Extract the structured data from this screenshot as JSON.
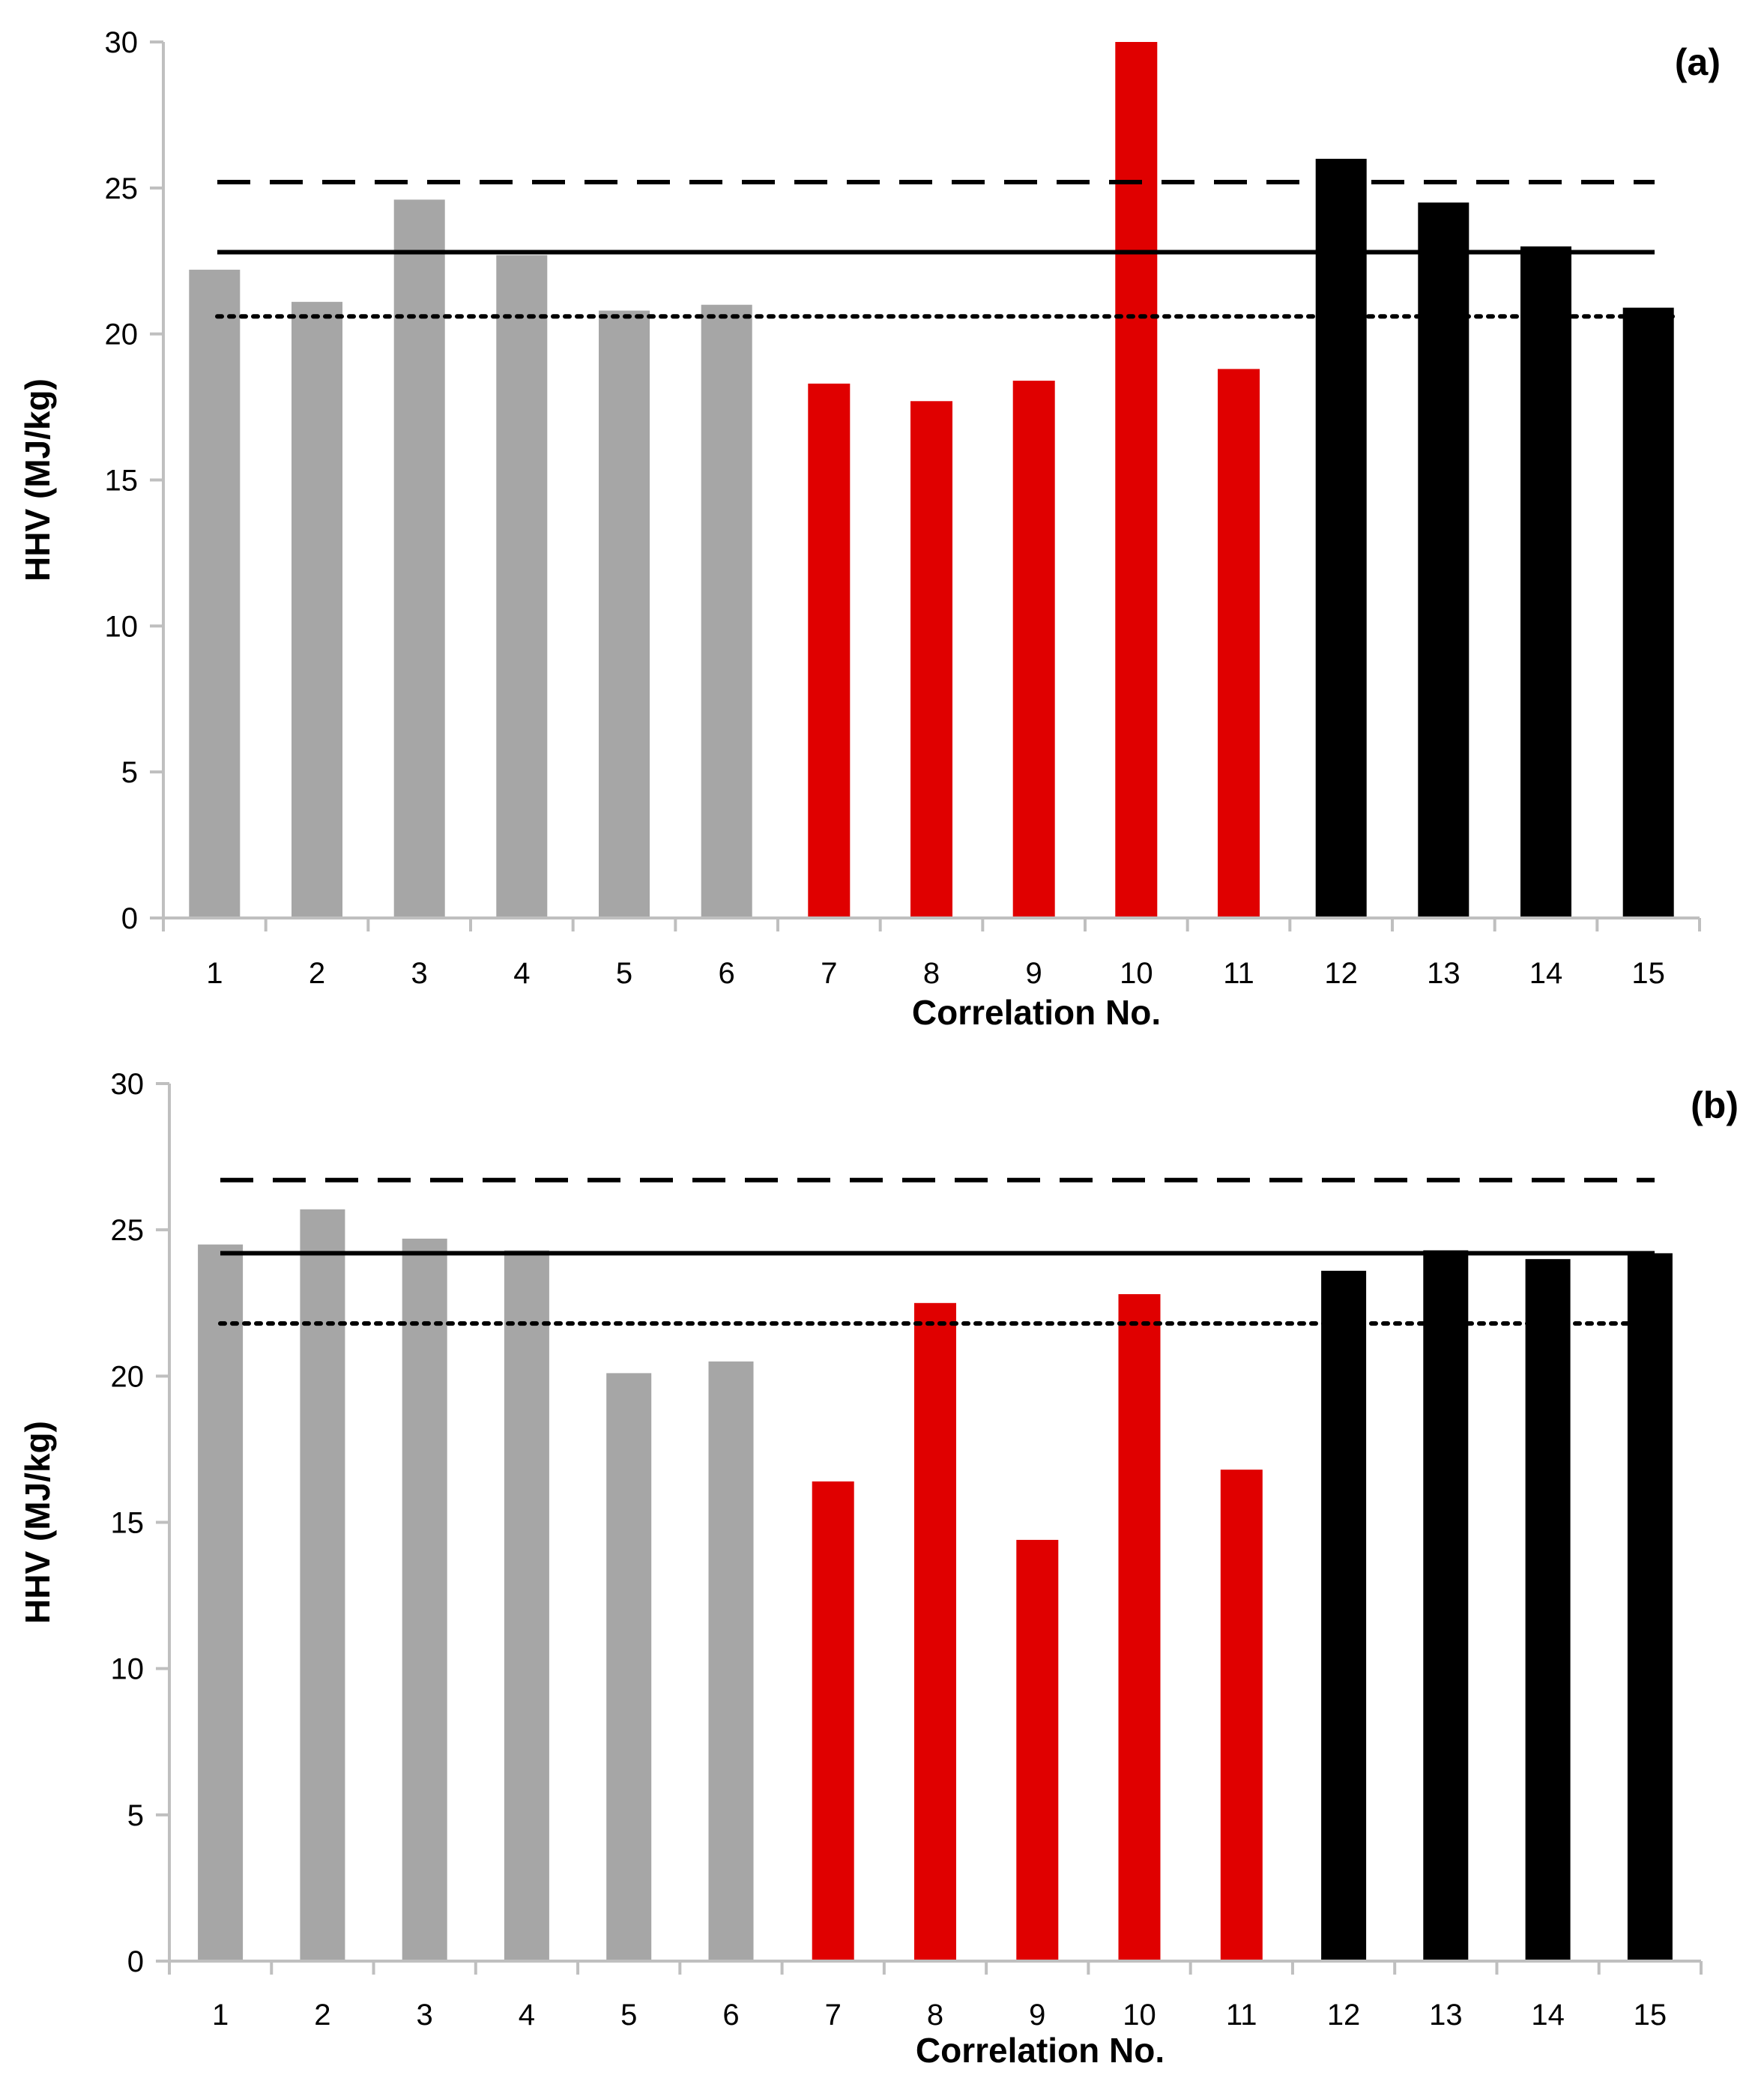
{
  "colors": {
    "group1": "#a6a6a6",
    "group2": "#e00000",
    "group3": "#000000",
    "axis": "#bfbfbf",
    "reference_lines": "#000000"
  },
  "chart_data": [
    {
      "type": "bar",
      "panel_label": "(a)",
      "xlabel": "Correlation No.",
      "ylabel": "HHV (MJ/kg)",
      "ylim": [
        0,
        30
      ],
      "yticks": [
        0,
        5,
        10,
        15,
        20,
        25,
        30
      ],
      "categories": [
        "1",
        "2",
        "3",
        "4",
        "5",
        "6",
        "7",
        "8",
        "9",
        "10",
        "11",
        "12",
        "13",
        "14",
        "15"
      ],
      "values": [
        22.2,
        21.1,
        24.6,
        22.7,
        20.8,
        21.0,
        18.3,
        17.7,
        18.4,
        30.0,
        18.8,
        26.0,
        24.5,
        23.0,
        20.9
      ],
      "bar_groups": [
        "group1",
        "group1",
        "group1",
        "group1",
        "group1",
        "group1",
        "group2",
        "group2",
        "group2",
        "group2",
        "group2",
        "group3",
        "group3",
        "group3",
        "group3"
      ],
      "reference_lines": [
        {
          "style": "dashed",
          "value": 25.2
        },
        {
          "style": "solid",
          "value": 22.8
        },
        {
          "style": "dotted",
          "value": 20.6
        }
      ],
      "grid": false
    },
    {
      "type": "bar",
      "panel_label": "(b)",
      "xlabel": "Correlation No.",
      "ylabel": "HHV (MJ/kg)",
      "ylim": [
        0,
        30
      ],
      "yticks": [
        0,
        5,
        10,
        15,
        20,
        25,
        30
      ],
      "categories": [
        "1",
        "2",
        "3",
        "4",
        "5",
        "6",
        "7",
        "8",
        "9",
        "10",
        "11",
        "12",
        "13",
        "14",
        "15"
      ],
      "values": [
        24.5,
        25.7,
        24.7,
        24.3,
        20.1,
        20.5,
        16.4,
        22.5,
        14.4,
        22.8,
        16.8,
        23.6,
        24.3,
        24.0,
        24.2
      ],
      "bar_groups": [
        "group1",
        "group1",
        "group1",
        "group1",
        "group1",
        "group1",
        "group2",
        "group2",
        "group2",
        "group2",
        "group2",
        "group3",
        "group3",
        "group3",
        "group3"
      ],
      "reference_lines": [
        {
          "style": "dashed",
          "value": 26.7
        },
        {
          "style": "solid",
          "value": 24.2
        },
        {
          "style": "dotted",
          "value": 21.8
        }
      ],
      "grid": false
    }
  ]
}
